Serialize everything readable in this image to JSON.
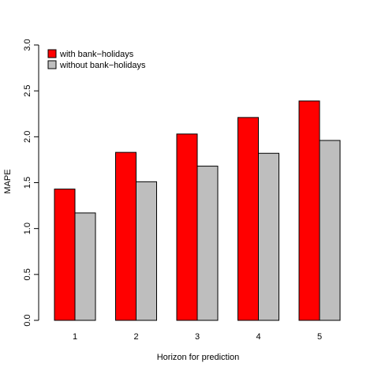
{
  "chart_data": {
    "type": "bar",
    "categories": [
      "1",
      "2",
      "3",
      "4",
      "5"
    ],
    "series": [
      {
        "name": "with bank−holidays",
        "color": "#ff0000",
        "values": [
          1.43,
          1.83,
          2.03,
          2.21,
          2.39
        ]
      },
      {
        "name": "without bank−holidays",
        "color": "#bebebe",
        "values": [
          1.17,
          1.51,
          1.68,
          1.82,
          1.96
        ]
      }
    ],
    "title": "",
    "xlabel": "Horizon for prediction",
    "ylabel": "MAPE",
    "ylim": [
      0,
      3
    ],
    "yticks": [
      "0.0",
      "0.5",
      "1.0",
      "1.5",
      "2.0",
      "2.5",
      "3.0"
    ],
    "grid": false,
    "legend_position": "top-left"
  }
}
